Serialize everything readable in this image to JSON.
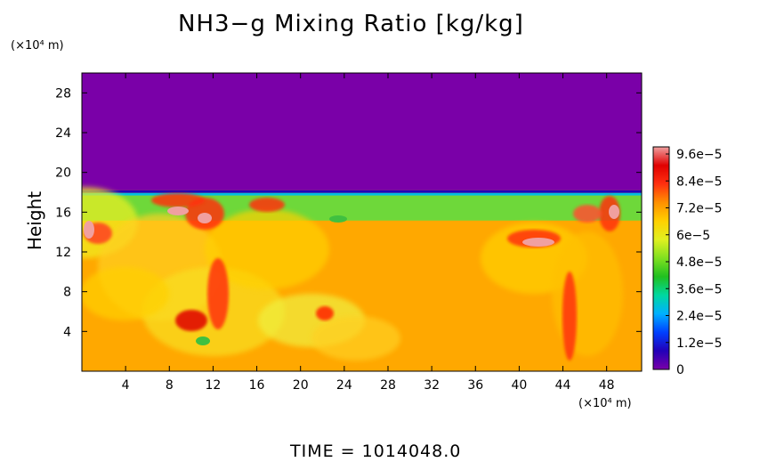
{
  "chart_data": {
    "type": "heatmap",
    "title": "NH3−g Mixing Ratio [kg/kg]",
    "ylabel": "Height",
    "y_unit_label": "(×10⁴ m)",
    "x_unit_label": "(×10⁴ m)",
    "footer": "TIME = 1014048.0",
    "xlim": [
      0,
      51.2
    ],
    "ylim": [
      0,
      30
    ],
    "x_ticks": [
      4,
      8,
      12,
      16,
      20,
      24,
      28,
      32,
      36,
      40,
      44,
      48
    ],
    "x_tick_labels": [
      "4",
      "8",
      "12",
      "16",
      "20",
      "24",
      "28",
      "32",
      "36",
      "40",
      "44",
      "48"
    ],
    "y_ticks": [
      4,
      8,
      12,
      16,
      20,
      24,
      28
    ],
    "y_tick_labels": [
      "4",
      "8",
      "12",
      "16",
      "20",
      "24",
      "28"
    ],
    "colorbar": {
      "range": [
        0,
        9.6e-05
      ],
      "tick_labels": [
        "0",
        "1.2e−5",
        "2.4e−5",
        "3.6e−5",
        "4.8e−5",
        "6e−5",
        "7.2e−5",
        "8.4e−5",
        "9.6e−5"
      ],
      "colors": [
        "#7a00a8",
        "#2200b8",
        "#0040ff",
        "#00b0ff",
        "#00d8a0",
        "#20c020",
        "#80e020",
        "#e0f020",
        "#ffd000",
        "#ff9000",
        "#ff3010",
        "#e00000",
        "#f0a0a0"
      ]
    },
    "field_description": {
      "upper_layer_value": 0,
      "upper_layer_bottom_height": 18.2,
      "band_top_height": 18.2,
      "band_value_range": [
        4e-05,
        8e-05
      ],
      "lower_layer_value_typical": 7.2e-05
    }
  }
}
